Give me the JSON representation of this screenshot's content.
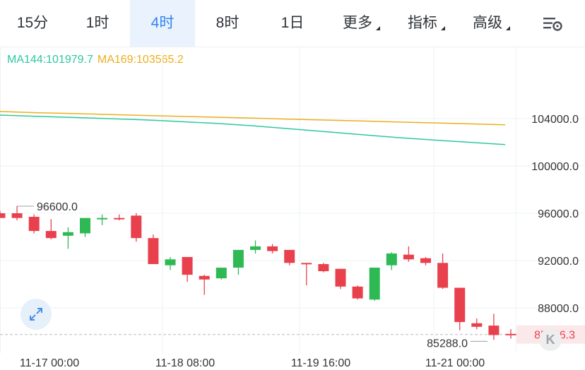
{
  "tabs": [
    {
      "label": "15分",
      "active": false,
      "dropdown": false
    },
    {
      "label": "1时",
      "active": false,
      "dropdown": false
    },
    {
      "label": "4时",
      "active": true,
      "dropdown": false
    },
    {
      "label": "8时",
      "active": false,
      "dropdown": false
    },
    {
      "label": "1日",
      "active": false,
      "dropdown": false
    },
    {
      "label": "更多",
      "active": false,
      "dropdown": true
    },
    {
      "label": "指标",
      "active": false,
      "dropdown": true
    },
    {
      "label": "高级",
      "active": false,
      "dropdown": true
    }
  ],
  "settings_icon": "chart-settings-icon",
  "ma_legend": {
    "ma144": "MA144:101979.7",
    "ma169": "MA169:103565.2"
  },
  "colors": {
    "up": "#2fb955",
    "down": "#e8414d",
    "ma144": "#2ec7a0",
    "ma169": "#ecae1c",
    "active_tab": "#2f83f0",
    "grid": "#eef0f3"
  },
  "price_labels": {
    "high_marker": "96600.0",
    "low_marker": "85288.0",
    "current_price": "85746.3"
  },
  "chart_data": {
    "type": "candlestick",
    "y_axis_ticks": [
      "104000.0",
      "100000.0",
      "96000.0",
      "92000.0",
      "88000.0"
    ],
    "y_tick_values": [
      104000,
      100000,
      96000,
      92000,
      88000
    ],
    "ylim": [
      85000,
      106800
    ],
    "x_axis_labels": [
      "11-17 00:00",
      "11-18 08:00",
      "11-19 16:00",
      "11-21 00:00"
    ],
    "grid": true,
    "candles": [
      {
        "o": 96000,
        "h": 96200,
        "l": 95700,
        "c": 95600
      },
      {
        "o": 96000,
        "h": 96600,
        "l": 95400,
        "c": 95600
      },
      {
        "o": 95700,
        "h": 95900,
        "l": 94300,
        "c": 94500
      },
      {
        "o": 94500,
        "h": 95500,
        "l": 93800,
        "c": 93900
      },
      {
        "o": 94100,
        "h": 94800,
        "l": 93000,
        "c": 94400
      },
      {
        "o": 94300,
        "h": 95600,
        "l": 94000,
        "c": 95600
      },
      {
        "o": 95500,
        "h": 95900,
        "l": 95000,
        "c": 95600
      },
      {
        "o": 95600,
        "h": 95900,
        "l": 95400,
        "c": 95500
      },
      {
        "o": 95800,
        "h": 96000,
        "l": 93600,
        "c": 93900
      },
      {
        "o": 93900,
        "h": 94200,
        "l": 91700,
        "c": 91700
      },
      {
        "o": 91600,
        "h": 92300,
        "l": 91200,
        "c": 92100
      },
      {
        "o": 92300,
        "h": 92300,
        "l": 90200,
        "c": 90800
      },
      {
        "o": 90700,
        "h": 90800,
        "l": 89100,
        "c": 90400
      },
      {
        "o": 90500,
        "h": 91400,
        "l": 90400,
        "c": 91400
      },
      {
        "o": 91400,
        "h": 92900,
        "l": 90800,
        "c": 92900
      },
      {
        "o": 92900,
        "h": 93700,
        "l": 92600,
        "c": 93200
      },
      {
        "o": 93200,
        "h": 93400,
        "l": 92600,
        "c": 92800
      },
      {
        "o": 92900,
        "h": 92900,
        "l": 91600,
        "c": 91800
      },
      {
        "o": 91800,
        "h": 91800,
        "l": 89900,
        "c": 91700
      },
      {
        "o": 91700,
        "h": 91800,
        "l": 91000,
        "c": 91100
      },
      {
        "o": 91300,
        "h": 91300,
        "l": 89600,
        "c": 89800
      },
      {
        "o": 89800,
        "h": 89900,
        "l": 88700,
        "c": 88800
      },
      {
        "o": 88700,
        "h": 91400,
        "l": 88600,
        "c": 91400
      },
      {
        "o": 91600,
        "h": 92700,
        "l": 91200,
        "c": 92600
      },
      {
        "o": 92500,
        "h": 93200,
        "l": 91900,
        "c": 92100
      },
      {
        "o": 92200,
        "h": 92300,
        "l": 91600,
        "c": 91800
      },
      {
        "o": 91800,
        "h": 92600,
        "l": 89600,
        "c": 89700
      },
      {
        "o": 89700,
        "h": 89700,
        "l": 86100,
        "c": 86800
      },
      {
        "o": 86700,
        "h": 87100,
        "l": 86200,
        "c": 86400
      },
      {
        "o": 86500,
        "h": 87500,
        "l": 85300,
        "c": 85700
      },
      {
        "o": 85800,
        "h": 86200,
        "l": 85400,
        "c": 85746
      }
    ],
    "ma144": [
      104300,
      104200,
      104100,
      104000,
      103900,
      103750,
      103600,
      103400,
      103150,
      102900,
      102650,
      102400,
      102200,
      102000,
      101800
    ],
    "ma169": [
      104600,
      104500,
      104430,
      104350,
      104270,
      104200,
      104120,
      104040,
      103960,
      103880,
      103800,
      103720,
      103640,
      103560,
      103480
    ]
  }
}
